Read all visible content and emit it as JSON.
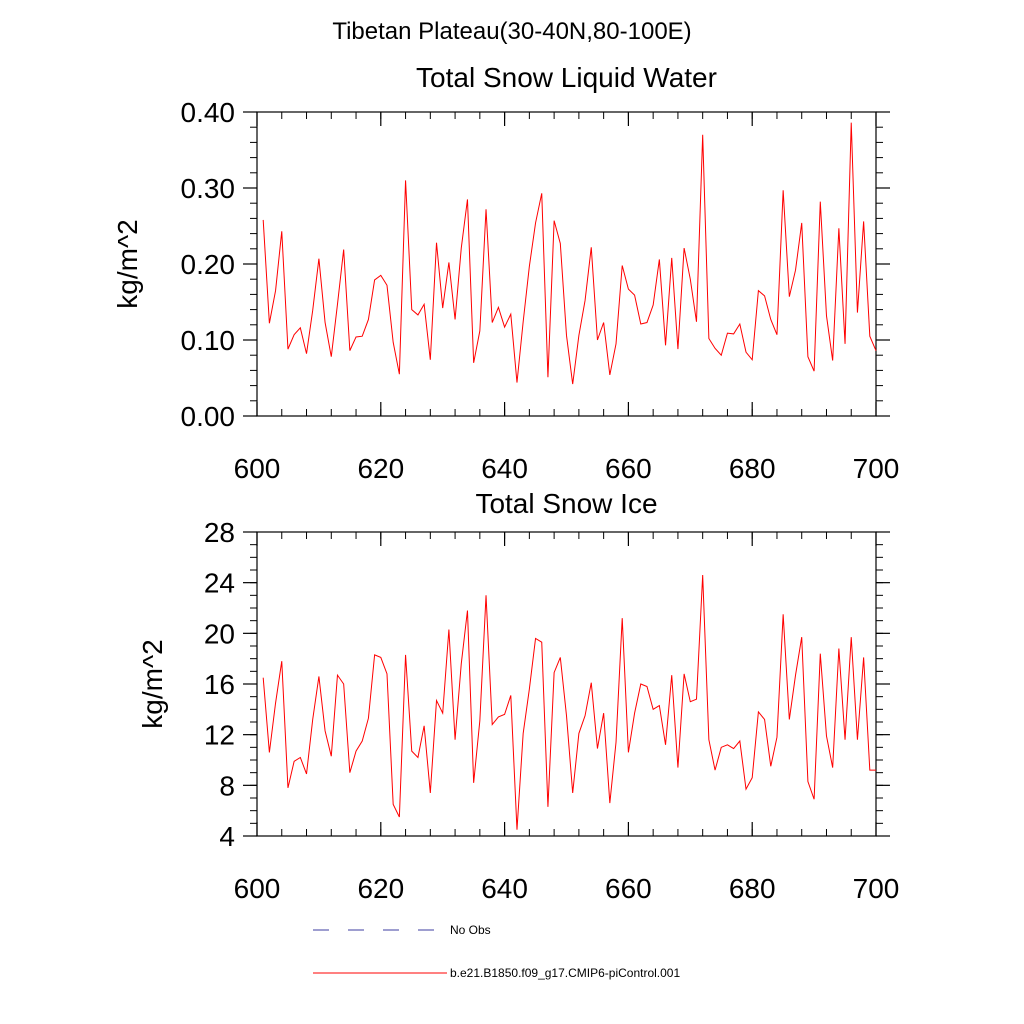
{
  "figure_title": "Tibetan Plateau(30-40N,80-100E)",
  "legend": [
    {
      "label": "No Obs",
      "style": "dashed",
      "color": "#3c3ca0"
    },
    {
      "label": "b.e21.B1850.f09_g17.CMIP6-piControl.001",
      "style": "solid",
      "color": "#ff0000"
    }
  ],
  "chart_data": [
    {
      "type": "line",
      "title": "Total Snow Liquid Water",
      "xlabel": "",
      "ylabel": "kg/m^2",
      "xlim": [
        600,
        700
      ],
      "ylim": [
        0.0,
        0.4
      ],
      "xticks": [
        600,
        620,
        640,
        660,
        680,
        700
      ],
      "xtick_labels": [
        "600",
        "620",
        "640",
        "660",
        "680",
        "700"
      ],
      "yticks": [
        0.0,
        0.1,
        0.2,
        0.3,
        0.4
      ],
      "ytick_labels": [
        "0.00",
        "0.10",
        "0.20",
        "0.30",
        "0.40"
      ],
      "yminor_step": 0.02,
      "xminor_step": 4,
      "series": [
        {
          "name": "b.e21.B1850.f09_g17.CMIP6-piControl.001",
          "color": "#ff0000",
          "x_start": 601,
          "x_step": 1,
          "values": [
            0.258,
            0.122,
            0.165,
            0.243,
            0.088,
            0.107,
            0.116,
            0.082,
            0.139,
            0.207,
            0.123,
            0.078,
            0.147,
            0.219,
            0.086,
            0.104,
            0.105,
            0.127,
            0.179,
            0.185,
            0.172,
            0.097,
            0.055,
            0.31,
            0.14,
            0.133,
            0.147,
            0.074,
            0.228,
            0.142,
            0.202,
            0.127,
            0.221,
            0.285,
            0.07,
            0.112,
            0.272,
            0.123,
            0.143,
            0.117,
            0.134,
            0.044,
            0.124,
            0.197,
            0.254,
            0.293,
            0.051,
            0.257,
            0.227,
            0.106,
            0.042,
            0.106,
            0.152,
            0.222,
            0.1,
            0.123,
            0.054,
            0.095,
            0.198,
            0.167,
            0.159,
            0.121,
            0.123,
            0.146,
            0.206,
            0.093,
            0.208,
            0.088,
            0.221,
            0.18,
            0.124,
            0.37,
            0.102,
            0.089,
            0.08,
            0.109,
            0.108,
            0.121,
            0.084,
            0.074,
            0.165,
            0.158,
            0.127,
            0.107,
            0.297,
            0.157,
            0.192,
            0.254,
            0.078,
            0.059,
            0.282,
            0.132,
            0.073,
            0.247,
            0.095,
            0.386,
            0.136,
            0.256,
            0.105,
            0.086
          ]
        }
      ]
    },
    {
      "type": "line",
      "title": "Total Snow Ice",
      "xlabel": "",
      "ylabel": "kg/m^2",
      "xlim": [
        600,
        700
      ],
      "ylim": [
        4,
        28
      ],
      "xticks": [
        600,
        620,
        640,
        660,
        680,
        700
      ],
      "xtick_labels": [
        "600",
        "620",
        "640",
        "660",
        "680",
        "700"
      ],
      "yticks": [
        4,
        8,
        12,
        16,
        20,
        24,
        28
      ],
      "ytick_labels": [
        "4",
        "8",
        "12",
        "16",
        "20",
        "24",
        "28"
      ],
      "yminor_step": 1,
      "xminor_step": 4,
      "series": [
        {
          "name": "b.e21.B1850.f09_g17.CMIP6-piControl.001",
          "color": "#ff0000",
          "x_start": 601,
          "x_step": 1,
          "values": [
            16.5,
            10.6,
            14.5,
            17.8,
            7.8,
            9.9,
            10.2,
            8.9,
            13.2,
            16.6,
            12.3,
            10.3,
            16.7,
            16.0,
            9.0,
            10.7,
            11.5,
            13.3,
            18.3,
            18.1,
            16.8,
            6.5,
            5.5,
            18.3,
            10.7,
            10.2,
            12.7,
            7.4,
            14.7,
            13.7,
            20.3,
            11.6,
            17.6,
            21.8,
            8.2,
            13.1,
            23.0,
            12.8,
            13.4,
            13.6,
            15.1,
            4.5,
            12.1,
            15.6,
            19.6,
            19.3,
            6.3,
            16.9,
            18.1,
            13.5,
            7.4,
            12.1,
            13.5,
            16.1,
            10.9,
            13.7,
            6.6,
            11.4,
            21.2,
            10.6,
            13.7,
            16.0,
            15.8,
            14.0,
            14.3,
            11.2,
            16.7,
            9.4,
            16.8,
            14.6,
            14.8,
            24.6,
            11.6,
            9.2,
            11.0,
            11.2,
            10.9,
            11.5,
            7.7,
            8.6,
            13.8,
            13.2,
            9.5,
            11.8,
            21.5,
            13.2,
            16.7,
            19.7,
            8.3,
            6.9,
            18.4,
            11.9,
            9.4,
            18.8,
            11.6,
            19.7,
            11.6,
            18.1,
            9.2,
            9.2
          ]
        }
      ]
    }
  ]
}
